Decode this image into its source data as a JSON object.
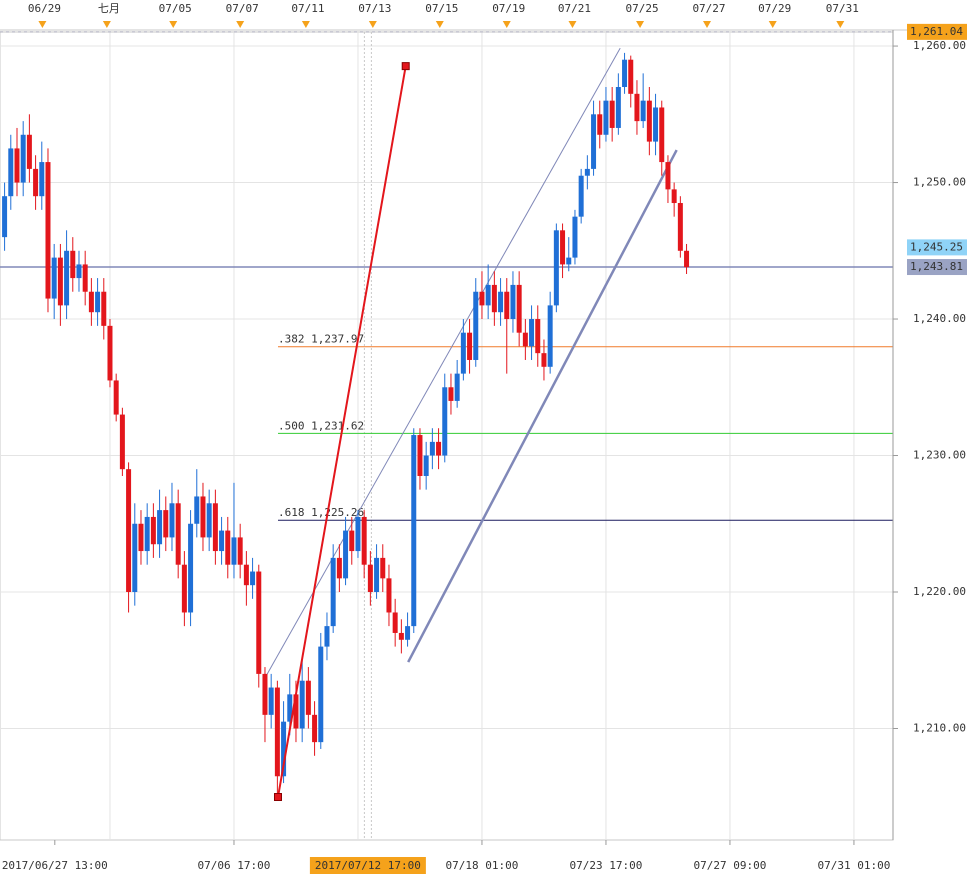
{
  "chart_data": {
    "type": "candlestick",
    "up_color": "#1f6fd6",
    "down_color": "#e3161c",
    "xlim": [
      -0.74,
      143.3
    ],
    "ylim": [
      1201.83,
      1261.03
    ],
    "yticks": [
      {
        "value": 1210,
        "label": "1,210.00"
      },
      {
        "value": 1220,
        "label": "1,220.00"
      },
      {
        "value": 1230,
        "label": "1,230.00"
      },
      {
        "value": 1240,
        "label": "1,240.00"
      },
      {
        "value": 1250,
        "label": "1,250.00"
      },
      {
        "value": 1260,
        "label": "1,260.00"
      }
    ],
    "xticks": [
      {
        "value": 8.1,
        "label": "2017/06/27 13:00"
      },
      {
        "value": 37,
        "label": "07/06 17:00"
      },
      {
        "value": 77,
        "label": "07/18 01:00"
      },
      {
        "value": 97,
        "label": "07/23 17:00"
      },
      {
        "value": 117,
        "label": "07/27 09:00"
      },
      {
        "value": 137,
        "label": "07/31 01:00"
      }
    ],
    "xgrid": [
      17,
      37,
      57,
      77,
      97,
      117,
      137
    ],
    "top_ticks": [
      {
        "value": 6.1,
        "label": "06/29"
      },
      {
        "value": 16.5,
        "label": "七月"
      },
      {
        "value": 27.2,
        "label": "07/05"
      },
      {
        "value": 38,
        "label": "07/07"
      },
      {
        "value": 48.6,
        "label": "07/11"
      },
      {
        "value": 59.4,
        "label": "07/13"
      },
      {
        "value": 70.2,
        "label": "07/15"
      },
      {
        "value": 81,
        "label": "07/19"
      },
      {
        "value": 91.6,
        "label": "07/21"
      },
      {
        "value": 102.5,
        "label": "07/25"
      },
      {
        "value": 113.3,
        "label": "07/27"
      },
      {
        "value": 123.9,
        "label": "07/29"
      },
      {
        "value": 134.8,
        "label": "07/31"
      }
    ],
    "cursor": {
      "value": 58.6,
      "label": "2017/07/12 17:00"
    },
    "price_markers": [
      {
        "value": 1261.04,
        "label": "1,261.04",
        "color": "#f5a21b"
      },
      {
        "value": 1245.25,
        "label": "1,245.25",
        "color": "#8fd3f7"
      },
      {
        "value": 1243.81,
        "label": "1,243.81",
        "color": "#9aa3c4"
      }
    ],
    "price_line": {
      "value": 1243.81,
      "color": "#8088b8"
    },
    "fib_levels": [
      {
        "value": 1237.97,
        "label": ".382 1,237.97",
        "color": "#f07a2a"
      },
      {
        "value": 1231.62,
        "label": ".500 1,231.62",
        "color": "#33cc33"
      },
      {
        "value": 1225.26,
        "label": ".618 1,225.26",
        "color": "#1a1a5e"
      }
    ],
    "fib_anchor": {
      "x": [
        44.1,
        64.7
      ],
      "y": [
        1204.98,
        1258.53
      ],
      "color": "#e3161c"
    },
    "trendlines": [
      {
        "x": [
          42.0,
          99.3
        ],
        "y": [
          1213.7,
          1259.85
        ],
        "color": "#8088b8",
        "width": 1
      },
      {
        "x": [
          65.1,
          108.4
        ],
        "y": [
          1214.87,
          1252.38
        ],
        "color": "#8088b8",
        "width": 2.5
      }
    ],
    "open": [
      1246.0,
      1249.0,
      1252.5,
      1250.0,
      1253.5,
      1251.0,
      1249.0,
      1251.5,
      1241.5,
      1244.5,
      1241.0,
      1245.0,
      1243.0,
      1244.0,
      1242.0,
      1240.5,
      1242.0,
      1239.5,
      1235.5,
      1233.0,
      1229.0,
      1220.0,
      1225.0,
      1223.0,
      1225.5,
      1223.5,
      1226.0,
      1224.0,
      1226.5,
      1222.0,
      1218.5,
      1225.0,
      1227.0,
      1224.0,
      1226.5,
      1223.0,
      1224.5,
      1222.0,
      1224.0,
      1222.0,
      1220.5,
      1221.5,
      1214.0,
      1211.0,
      1213.0,
      1206.5,
      1210.5,
      1212.5,
      1210.0,
      1213.5,
      1211.0,
      1209.0,
      1216.0,
      1217.5,
      1222.5,
      1221.0,
      1224.5,
      1223.0,
      1225.5,
      1222.0,
      1220.0,
      1222.5,
      1221.0,
      1218.5,
      1217.0,
      1216.5,
      1217.5,
      1231.5,
      1228.5,
      1230.0,
      1231.0,
      1230.0,
      1235.0,
      1234.0,
      1236.0,
      1239.0,
      1237.0,
      1242.0,
      1241.0,
      1242.5,
      1240.5,
      1242.0,
      1240.0,
      1242.5,
      1239.0,
      1238.0,
      1240.0,
      1237.5,
      1236.5,
      1241.0,
      1246.5,
      1244.0,
      1244.5,
      1247.5,
      1250.5,
      1251.0,
      1255.0,
      1253.5,
      1256.0,
      1254.0,
      1257.0,
      1259.0,
      1256.5,
      1254.5,
      1256.0,
      1253.0,
      1255.5,
      1251.5,
      1249.5,
      1248.5,
      1245.0
    ],
    "close": [
      1249.0,
      1252.5,
      1250.0,
      1253.5,
      1251.0,
      1249.0,
      1251.5,
      1241.5,
      1244.5,
      1241.0,
      1245.0,
      1243.0,
      1244.0,
      1242.0,
      1240.5,
      1242.0,
      1239.5,
      1235.5,
      1233.0,
      1229.0,
      1220.0,
      1225.0,
      1223.0,
      1225.5,
      1223.5,
      1226.0,
      1224.0,
      1226.5,
      1222.0,
      1218.5,
      1225.0,
      1227.0,
      1224.0,
      1226.5,
      1223.0,
      1224.5,
      1222.0,
      1224.0,
      1222.0,
      1220.5,
      1221.5,
      1214.0,
      1211.0,
      1213.0,
      1206.5,
      1210.5,
      1212.5,
      1210.0,
      1213.5,
      1211.0,
      1209.0,
      1216.0,
      1217.5,
      1222.5,
      1221.0,
      1224.5,
      1223.0,
      1225.5,
      1222.0,
      1220.0,
      1222.5,
      1221.0,
      1218.5,
      1217.0,
      1216.5,
      1217.5,
      1231.5,
      1228.5,
      1230.0,
      1231.0,
      1230.0,
      1235.0,
      1234.0,
      1236.0,
      1239.0,
      1237.0,
      1242.0,
      1241.0,
      1242.5,
      1240.5,
      1242.0,
      1240.0,
      1242.5,
      1239.0,
      1238.0,
      1240.0,
      1237.5,
      1236.5,
      1241.0,
      1246.5,
      1244.0,
      1244.5,
      1247.5,
      1250.5,
      1251.0,
      1255.0,
      1253.5,
      1256.0,
      1254.0,
      1257.0,
      1259.0,
      1256.5,
      1254.5,
      1256.0,
      1253.0,
      1255.5,
      1251.5,
      1249.5,
      1248.5,
      1245.0,
      1243.8
    ],
    "high": [
      1250.0,
      1253.5,
      1254.0,
      1254.5,
      1255.0,
      1252.0,
      1253.0,
      1252.5,
      1245.5,
      1245.5,
      1246.5,
      1246.0,
      1245.0,
      1245.0,
      1243.0,
      1243.0,
      1243.0,
      1240.0,
      1236.0,
      1233.5,
      1229.5,
      1226.5,
      1226.0,
      1226.5,
      1226.5,
      1227.5,
      1227.0,
      1228.0,
      1227.5,
      1223.0,
      1226.0,
      1229.0,
      1228.0,
      1227.5,
      1227.5,
      1225.5,
      1225.5,
      1228.0,
      1225.0,
      1223.0,
      1222.5,
      1222.0,
      1214.5,
      1214.0,
      1213.5,
      1212.0,
      1214.0,
      1213.5,
      1215.0,
      1214.5,
      1212.0,
      1217.0,
      1218.5,
      1223.5,
      1223.5,
      1225.5,
      1225.5,
      1226.0,
      1226.0,
      1223.0,
      1223.5,
      1223.5,
      1222.0,
      1219.5,
      1218.0,
      1218.5,
      1232.0,
      1232.0,
      1231.0,
      1232.0,
      1232.0,
      1236.0,
      1236.0,
      1237.0,
      1240.0,
      1240.0,
      1243.0,
      1243.5,
      1244.0,
      1243.5,
      1243.0,
      1243.0,
      1243.5,
      1243.5,
      1240.0,
      1241.0,
      1241.0,
      1238.5,
      1242.0,
      1247.0,
      1247.0,
      1246.0,
      1248.0,
      1251.0,
      1252.0,
      1256.0,
      1256.0,
      1257.0,
      1257.0,
      1258.0,
      1259.5,
      1259.3,
      1257.5,
      1258.0,
      1257.0,
      1256.5,
      1256.0,
      1252.0,
      1250.0,
      1249.0,
      1245.5
    ],
    "low": [
      1245.0,
      1248.0,
      1249.0,
      1249.0,
      1250.0,
      1248.0,
      1248.0,
      1240.5,
      1240.0,
      1239.5,
      1240.0,
      1242.0,
      1242.0,
      1241.0,
      1239.5,
      1239.5,
      1238.5,
      1235.0,
      1232.5,
      1228.5,
      1218.5,
      1219.0,
      1222.0,
      1222.0,
      1222.5,
      1222.5,
      1223.0,
      1223.0,
      1221.0,
      1217.5,
      1217.5,
      1224.0,
      1223.0,
      1223.0,
      1222.0,
      1222.0,
      1221.0,
      1221.0,
      1221.0,
      1219.0,
      1219.5,
      1213.0,
      1209.0,
      1210.0,
      1205.0,
      1206.0,
      1209.5,
      1209.0,
      1209.0,
      1210.0,
      1208.0,
      1208.5,
      1215.0,
      1217.0,
      1220.0,
      1220.5,
      1222.0,
      1222.5,
      1221.0,
      1219.0,
      1219.5,
      1220.0,
      1217.5,
      1216.0,
      1215.5,
      1216.0,
      1217.0,
      1227.5,
      1227.5,
      1229.0,
      1229.0,
      1229.5,
      1233.0,
      1233.5,
      1235.5,
      1236.0,
      1236.5,
      1240.0,
      1240.0,
      1239.5,
      1239.5,
      1236.0,
      1239.0,
      1238.0,
      1237.0,
      1237.0,
      1236.5,
      1235.5,
      1236.0,
      1240.5,
      1243.0,
      1243.5,
      1244.0,
      1247.0,
      1249.5,
      1250.5,
      1252.5,
      1253.0,
      1253.0,
      1253.5,
      1256.5,
      1255.5,
      1253.5,
      1254.0,
      1252.0,
      1252.0,
      1250.5,
      1248.5,
      1247.5,
      1244.5,
      1243.3
    ]
  }
}
